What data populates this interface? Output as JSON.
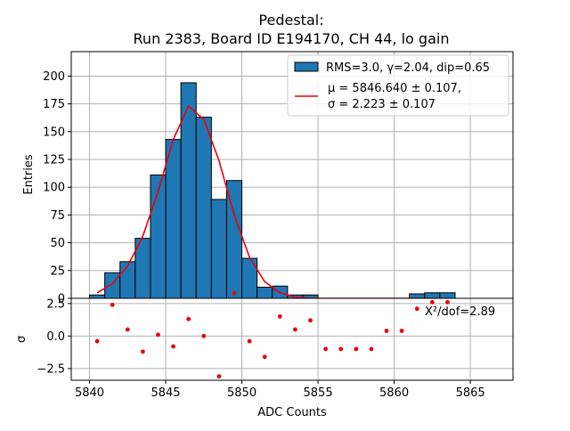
{
  "chart_data": {
    "type": "bar",
    "title_line1": "Pedestal:",
    "title_line2": "Run 2383, Board ID E194170, CH 44, lo gain",
    "xlabel": "ADC Counts",
    "ylabel_top": "Entries",
    "ylabel_bottom": "σ",
    "xlim": [
      5838.8,
      5867.8
    ],
    "ylim_top": [
      0,
      222
    ],
    "ylim_bottom": [
      -3.4,
      2.9
    ],
    "x_ticks": [
      5840,
      5845,
      5850,
      5855,
      5860,
      5865
    ],
    "y_ticks_top": [
      0,
      25,
      50,
      75,
      100,
      125,
      150,
      175,
      200
    ],
    "y_ticks_bottom": [
      -2.5,
      0.0,
      2.5
    ],
    "y_tick_labels_bottom": [
      "−2.5",
      "0.0",
      "2.5"
    ],
    "grid": true,
    "legend": {
      "placement": "top-right",
      "hist_label": "RMS=3.0, γ=2.04, dip=0.65",
      "fit_label_mu": "μ = 5846.640 ± 0.107,",
      "fit_label_sigma": "σ = 2.223 ± 0.107"
    },
    "chi2_label": "X²/dof=2.89",
    "colors": {
      "bar": "#1f77b4",
      "fit": "#e8000b",
      "residual": "#e8000b"
    },
    "histogram": {
      "bin_edges": [
        5840,
        5841,
        5842,
        5843,
        5844,
        5845,
        5846,
        5847,
        5848,
        5849,
        5850,
        5851,
        5852,
        5853,
        5854,
        5855,
        5856,
        5857,
        5858,
        5859,
        5860,
        5861,
        5862,
        5863,
        5864
      ],
      "counts": [
        3,
        23,
        33,
        54,
        111,
        143,
        194,
        163,
        89,
        106,
        36,
        10,
        11,
        3,
        3,
        0,
        0,
        0,
        0,
        0,
        0,
        4,
        5,
        5
      ]
    },
    "fit_curve": {
      "x": [
        5840.5,
        5841.5,
        5842.5,
        5843.5,
        5844.5,
        5845.5,
        5846.5,
        5847.5,
        5848.5,
        5849.5,
        5850.5,
        5851.5,
        5852.5,
        5853.5,
        5854.5,
        5855.5,
        5856.5,
        5857.5,
        5858.5,
        5859.5,
        5860.5,
        5861.5,
        5862.5,
        5863.5
      ],
      "y": [
        5,
        13,
        29,
        56,
        96,
        143,
        173,
        161,
        124,
        75,
        37,
        15,
        5,
        1,
        0,
        0,
        0,
        0,
        0,
        0,
        0,
        0,
        0,
        0
      ]
    },
    "residuals": {
      "x": [
        5840.5,
        5841.5,
        5842.5,
        5843.5,
        5844.5,
        5845.5,
        5846.5,
        5847.5,
        5848.5,
        5849.5,
        5850.5,
        5851.5,
        5852.5,
        5853.5,
        5854.5,
        5855.5,
        5856.5,
        5857.5,
        5858.5,
        5859.5,
        5860.5,
        5861.5,
        5862.5,
        5863.5
      ],
      "y": [
        -0.4,
        2.4,
        0.5,
        -1.2,
        0.1,
        -0.8,
        1.3,
        0.0,
        -3.1,
        3.3,
        -0.4,
        -1.6,
        1.5,
        0.5,
        1.2,
        -1.0,
        -1.0,
        -1.0,
        -1.0,
        0.4,
        0.4,
        2.1,
        2.6,
        2.6
      ]
    }
  }
}
